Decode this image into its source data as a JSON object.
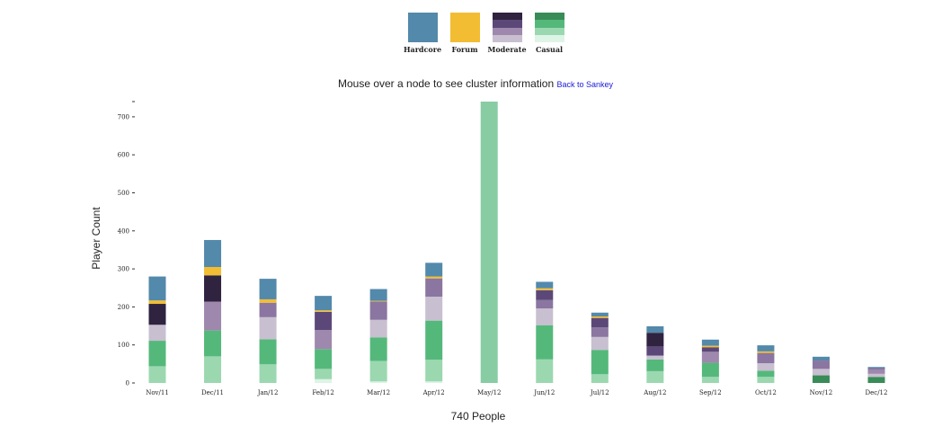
{
  "legend": [
    {
      "key": "hardcore",
      "label": "Hardcore",
      "colors": [
        "#5389ab"
      ]
    },
    {
      "key": "forum",
      "label": "Forum",
      "colors": [
        "#f2bd33"
      ]
    },
    {
      "key": "moderate",
      "label": "Moderate",
      "colors": [
        "#2f2340",
        "#5c4878",
        "#9e88ad",
        "#c8bfd0"
      ]
    },
    {
      "key": "casual",
      "label": "Casual",
      "colors": [
        "#398c58",
        "#55b87b",
        "#9bd8b0",
        "#def4e6"
      ]
    }
  ],
  "info": {
    "text": "Mouse over a node to see cluster information",
    "link": "Back to Sankey"
  },
  "chart_data": {
    "type": "bar",
    "stacked": true,
    "ylabel": "Player Count",
    "xlabel": "740 People",
    "ylim": [
      0,
      740
    ],
    "yticks": [
      0,
      100,
      200,
      300,
      400,
      500,
      600,
      700
    ],
    "categories": [
      "Nov/11",
      "Dec/11",
      "Jan/12",
      "Feb/12",
      "Mar/12",
      "Apr/12",
      "May/12",
      "Jun/12",
      "Jul/12",
      "Aug/12",
      "Sep/12",
      "Oct/12",
      "Nov/12",
      "Dec/12"
    ],
    "series": [
      {
        "color": "#def4e6",
        "values": [
          0,
          0,
          0,
          10,
          4,
          4,
          0,
          0,
          0,
          0,
          0,
          0,
          0,
          0
        ]
      },
      {
        "color": "#9bd8b0",
        "values": [
          44,
          70,
          49,
          27,
          54,
          57,
          0,
          62,
          23,
          31,
          16,
          16,
          0,
          0
        ]
      },
      {
        "color": "#88cca4",
        "values": [
          0,
          0,
          0,
          0,
          0,
          0,
          740,
          0,
          0,
          0,
          0,
          0,
          0,
          0
        ]
      },
      {
        "color": "#55b87b",
        "values": [
          67,
          68,
          66,
          52,
          62,
          103,
          0,
          90,
          64,
          31,
          37,
          16,
          0,
          0
        ]
      },
      {
        "color": "#398c58",
        "values": [
          0,
          0,
          0,
          0,
          0,
          0,
          0,
          0,
          0,
          0,
          0,
          0,
          20,
          16
        ]
      },
      {
        "color": "#c8bfd0",
        "values": [
          42,
          0,
          58,
          0,
          46,
          63,
          0,
          44,
          34,
          10,
          0,
          20,
          17,
          8
        ]
      },
      {
        "color": "#9e88ad",
        "values": [
          0,
          76,
          0,
          50,
          0,
          0,
          0,
          0,
          0,
          0,
          29,
          0,
          0,
          10
        ]
      },
      {
        "color": "#8a76a0",
        "values": [
          0,
          0,
          38,
          0,
          48,
          48,
          0,
          22,
          25,
          0,
          0,
          27,
          22,
          5
        ]
      },
      {
        "color": "#5c4878",
        "values": [
          0,
          0,
          0,
          48,
          0,
          0,
          0,
          26,
          25,
          24,
          12,
          0,
          0,
          0
        ]
      },
      {
        "color": "#2f2340",
        "values": [
          55,
          69,
          0,
          0,
          0,
          0,
          0,
          0,
          0,
          36,
          0,
          0,
          0,
          0
        ]
      },
      {
        "color": "#f2bd33",
        "values": [
          9,
          22,
          9,
          4,
          2,
          5,
          0,
          5,
          4,
          0,
          4,
          4,
          0,
          0
        ]
      },
      {
        "color": "#5389ab",
        "values": [
          63,
          71,
          54,
          38,
          31,
          36,
          0,
          17,
          10,
          17,
          16,
          16,
          10,
          3
        ]
      }
    ]
  }
}
